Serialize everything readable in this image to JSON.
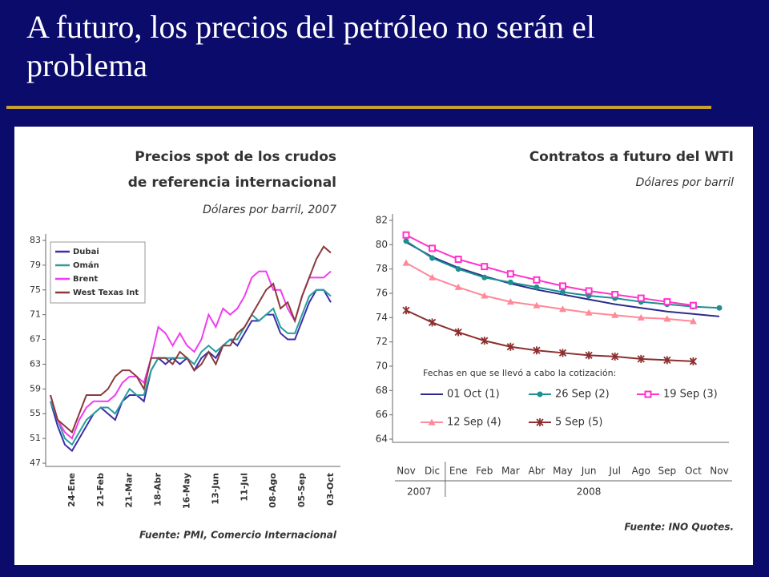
{
  "title": "A futuro, los precios del petróleo no serán el problema",
  "chart_data": [
    {
      "type": "line",
      "title": "Precios spot de los crudos de referencia internacional",
      "subtitle": "Dólares por barril, 2007",
      "source": "Fuente: PMI, Comercio Internacional",
      "categories": [
        null,
        null,
        null,
        "24-Ene",
        null,
        null,
        null,
        "21-Feb",
        null,
        null,
        null,
        "21-Mar",
        null,
        null,
        null,
        "18-Abr",
        null,
        null,
        null,
        "16-May",
        null,
        null,
        null,
        "13-Jun",
        null,
        null,
        null,
        "11-Jul",
        null,
        null,
        null,
        "08-Ago",
        null,
        null,
        null,
        "05-Sep",
        null,
        null,
        null,
        "03-Oct"
      ],
      "ylim": [
        47,
        83
      ],
      "yticks": [
        47,
        51,
        55,
        59,
        63,
        67,
        71,
        75,
        79,
        83
      ],
      "grid": false,
      "legend": "upper left",
      "series": [
        {
          "name": "Dubai",
          "color": "#3a2fa8",
          "values": [
            57,
            53,
            50,
            49,
            51,
            53,
            55,
            56,
            55,
            54,
            57,
            58,
            58,
            57,
            62,
            64,
            63,
            64,
            63,
            64,
            62,
            64,
            65,
            64,
            66,
            67,
            66,
            68,
            70,
            70,
            71,
            71,
            68,
            67,
            67,
            70,
            73,
            75,
            75,
            73
          ]
        },
        {
          "name": "Omán",
          "color": "#2a9d9d",
          "values": [
            57,
            54,
            51,
            50,
            52,
            54,
            55,
            56,
            56,
            55,
            57,
            59,
            58,
            58,
            62,
            64,
            64,
            64,
            64,
            64,
            63,
            65,
            66,
            65,
            66,
            67,
            67,
            69,
            71,
            70,
            71,
            72,
            69,
            68,
            68,
            71,
            74,
            75,
            75,
            74
          ]
        },
        {
          "name": "Brent",
          "color": "#f03cf0",
          "values": [
            58,
            54,
            52,
            51,
            54,
            56,
            57,
            57,
            57,
            58,
            60,
            61,
            61,
            60,
            64,
            69,
            68,
            66,
            68,
            66,
            65,
            67,
            71,
            69,
            72,
            71,
            72,
            74,
            77,
            78,
            78,
            75,
            75,
            72,
            70,
            74,
            77,
            77,
            77,
            78
          ]
        },
        {
          "name": "West Texas Int",
          "color": "#8b3a3a",
          "values": [
            58,
            54,
            53,
            52,
            55,
            58,
            58,
            58,
            59,
            61,
            62,
            62,
            61,
            59,
            64,
            64,
            64,
            63,
            65,
            64,
            62,
            63,
            65,
            63,
            66,
            66,
            68,
            69,
            71,
            73,
            75,
            76,
            72,
            73,
            70,
            74,
            77,
            80,
            82,
            81
          ]
        }
      ]
    },
    {
      "type": "line",
      "title": "Contratos a futuro del WTI",
      "subtitle": "Dólares por barril",
      "source": "Fuente: INO Quotes.",
      "legend_title": "Fechas en que se llevó a cabo la cotización:",
      "categories": [
        "Nov",
        "Dic",
        "Ene",
        "Feb",
        "Mar",
        "Abr",
        "May",
        "Jun",
        "Jul",
        "Ago",
        "Sep",
        "Oct",
        "Nov"
      ],
      "year_groups": [
        {
          "label": "2007",
          "span": 2
        },
        {
          "label": "2008",
          "span": 11
        }
      ],
      "ylim": [
        64,
        82
      ],
      "yticks": [
        64,
        66,
        68,
        70,
        72,
        74,
        76,
        78,
        80,
        82
      ],
      "grid": false,
      "legend": "lower center",
      "series": [
        {
          "name": "01 Oct (1)",
          "color": "#2b2b8c",
          "marker": "none",
          "values": [
            80.2,
            79.0,
            78.1,
            77.4,
            76.8,
            76.3,
            75.9,
            75.5,
            75.1,
            74.8,
            74.5,
            74.3,
            74.1
          ]
        },
        {
          "name": "26 Sep (2)",
          "color": "#1f8f8f",
          "marker": "circle",
          "values": [
            80.3,
            78.9,
            78.0,
            77.3,
            76.9,
            76.5,
            76.1,
            75.8,
            75.6,
            75.3,
            75.1,
            74.9,
            74.8
          ]
        },
        {
          "name": "19 Sep (3)",
          "color": "#ff33cc",
          "marker": "square",
          "values": [
            80.8,
            79.7,
            78.8,
            78.2,
            77.6,
            77.1,
            76.6,
            76.2,
            75.9,
            75.6,
            75.3,
            75.0,
            null
          ]
        },
        {
          "name": "12 Sep (4)",
          "color": "#ff8899",
          "marker": "triangle",
          "values": [
            78.5,
            77.3,
            76.5,
            75.8,
            75.3,
            75.0,
            74.7,
            74.4,
            74.2,
            74.0,
            73.9,
            73.7,
            null
          ]
        },
        {
          "name": "5 Sep (5)",
          "color": "#8b2f2f",
          "marker": "star",
          "values": [
            74.6,
            73.6,
            72.8,
            72.1,
            71.6,
            71.3,
            71.1,
            70.9,
            70.8,
            70.6,
            70.5,
            70.4,
            null
          ]
        }
      ]
    }
  ]
}
